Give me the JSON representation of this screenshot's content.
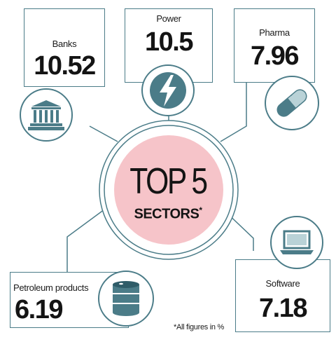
{
  "center": {
    "title": "TOP 5",
    "subtitle": "SECTORS",
    "subtitle_mark": "*"
  },
  "sectors": [
    {
      "name": "Banks",
      "value": "10.52",
      "icon": "bank-building-icon"
    },
    {
      "name": "Power",
      "value": "10.5",
      "icon": "lightning-bolt-icon"
    },
    {
      "name": "Pharma",
      "value": "7.96",
      "icon": "pill-capsule-icon"
    },
    {
      "name": "Petroleum products",
      "value": "6.19",
      "icon": "oil-barrel-icon"
    },
    {
      "name": "Software",
      "value": "7.18",
      "icon": "laptop-icon"
    }
  ],
  "footnote": "*All figures in %",
  "colors": {
    "outline": "#4b7c88",
    "icon_fill": "#4b7c88",
    "center_fill": "#f6c4c9"
  }
}
